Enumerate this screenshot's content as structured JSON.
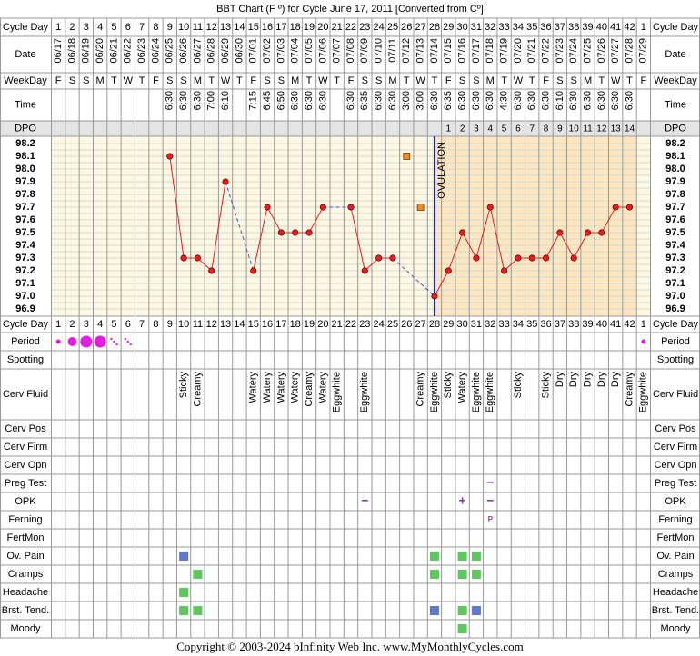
{
  "title": "BBT Chart (F º) for Cycle June 17, 2011  [Converted from Cº]",
  "copyright": "Copyright © 2003-2024 bInfinity Web Inc.     www.MyMonthlyCycles.com",
  "header_rows": {
    "cycle_day": "Cycle Day",
    "date": "Date",
    "weekday": "WeekDay",
    "time": "Time",
    "dpo": "DPO"
  },
  "chart_data": {
    "type": "line",
    "categories": [
      1,
      2,
      3,
      4,
      5,
      6,
      7,
      8,
      9,
      10,
      11,
      12,
      13,
      14,
      15,
      16,
      17,
      18,
      19,
      20,
      21,
      22,
      23,
      24,
      25,
      26,
      27,
      28,
      29,
      30,
      31,
      32,
      33,
      34,
      35,
      36,
      37,
      38,
      39,
      40,
      41,
      42,
      1
    ],
    "dates": [
      "06/17",
      "06/18",
      "06/19",
      "06/20",
      "06/21",
      "06/22",
      "06/23",
      "06/24",
      "06/25",
      "06/26",
      "06/27",
      "06/28",
      "06/29",
      "06/30",
      "07/01",
      "07/02",
      "07/03",
      "07/04",
      "07/05",
      "07/06",
      "07/07",
      "07/08",
      "07/09",
      "07/10",
      "07/11",
      "07/12",
      "07/13",
      "07/14",
      "07/15",
      "07/16",
      "07/17",
      "07/18",
      "07/19",
      "07/20",
      "07/21",
      "07/22",
      "07/23",
      "07/24",
      "07/25",
      "07/26",
      "07/27",
      "07/28",
      "07/29"
    ],
    "weekdays": [
      "F",
      "S",
      "S",
      "M",
      "T",
      "W",
      "T",
      "F",
      "S",
      "S",
      "M",
      "T",
      "W",
      "T",
      "F",
      "S",
      "S",
      "M",
      "T",
      "W",
      "T",
      "F",
      "S",
      "S",
      "M",
      "T",
      "W",
      "T",
      "F",
      "S",
      "S",
      "M",
      "T",
      "W",
      "T",
      "F",
      "S",
      "S",
      "M",
      "T",
      "W",
      "T",
      "F"
    ],
    "times": [
      null,
      null,
      null,
      null,
      null,
      null,
      null,
      null,
      "6:30",
      "6:30",
      "6:30",
      "7:00",
      "6:10",
      null,
      "7:15",
      "6:45",
      "6:50",
      "6:30",
      "6:30",
      "6:30",
      null,
      "6:30",
      "6:35",
      "6:30",
      "6:30",
      "3:00",
      "3:00",
      "6:30",
      "6:35",
      "6:30",
      "6:30",
      "6:30",
      "4:30",
      "6:30",
      "6:30",
      "6:30",
      "6:10",
      "6:30",
      "6:30",
      "6:30",
      "6:30",
      "6:30",
      null
    ],
    "dpo": [
      null,
      null,
      null,
      null,
      null,
      null,
      null,
      null,
      null,
      null,
      null,
      null,
      null,
      null,
      null,
      null,
      null,
      null,
      null,
      null,
      null,
      null,
      null,
      null,
      null,
      null,
      null,
      null,
      1,
      2,
      3,
      4,
      5,
      6,
      7,
      8,
      9,
      10,
      11,
      12,
      13,
      14,
      null
    ],
    "values": [
      null,
      null,
      null,
      null,
      null,
      null,
      null,
      null,
      98.1,
      97.3,
      97.3,
      97.2,
      97.9,
      null,
      97.2,
      97.7,
      97.5,
      97.5,
      97.5,
      97.7,
      null,
      97.7,
      97.2,
      97.3,
      97.3,
      null,
      null,
      97.0,
      97.2,
      97.5,
      97.3,
      97.7,
      97.2,
      97.3,
      97.3,
      97.3,
      97.5,
      97.3,
      97.5,
      97.5,
      97.7,
      97.7,
      null
    ],
    "excluded_values": [
      null,
      null,
      null,
      null,
      null,
      null,
      null,
      null,
      null,
      null,
      null,
      null,
      null,
      null,
      null,
      null,
      null,
      null,
      null,
      null,
      null,
      null,
      null,
      null,
      null,
      98.1,
      97.7,
      null,
      null,
      null,
      null,
      null,
      null,
      null,
      null,
      null,
      null,
      null,
      null,
      null,
      null,
      null,
      null
    ],
    "color": "#e02020",
    "connector_color": "#4455dd",
    "excluded_color": "#f08a24",
    "ylim": [
      96.9,
      98.2
    ],
    "yticks": [
      98.2,
      98.1,
      {
        "value": 98,
        "label": "98.0"
      },
      97.9,
      97.8,
      97.7,
      97.6,
      97.5,
      97.4,
      97.3,
      97.2,
      97.1,
      {
        "value": 97,
        "label": "97.0"
      },
      96.9
    ],
    "ovulation_label": "OVULATION",
    "ovulation_date": "07/14",
    "ovulation_color": "#1020c0",
    "pre_color": "#fdf8e4",
    "post_color": "#fde7c3",
    "grid": true
  },
  "rows": [
    {
      "label": "Period",
      "color": "#e020e0",
      "values": [
        "light",
        "medium",
        "heavy",
        "heavy",
        "spotting",
        "spotting",
        null,
        null,
        null,
        null,
        null,
        null,
        null,
        null,
        null,
        null,
        null,
        null,
        null,
        null,
        null,
        null,
        null,
        null,
        null,
        null,
        null,
        null,
        null,
        null,
        null,
        null,
        null,
        null,
        null,
        null,
        null,
        null,
        null,
        null,
        null,
        null,
        "light"
      ]
    },
    {
      "label": "Spotting"
    },
    {
      "label": "Cerv Fluid",
      "values": [
        null,
        null,
        null,
        null,
        null,
        null,
        null,
        null,
        null,
        "Sticky",
        "Creamy",
        null,
        null,
        null,
        "Watery",
        "Watery",
        "Watery",
        "Watery",
        "Creamy",
        "Watery",
        "Eggwhite",
        null,
        "Eggwhite",
        null,
        null,
        null,
        "Creamy",
        "Eggwhite",
        "Sticky",
        "Watery",
        "Eggwhite",
        "Eggwhite",
        null,
        "Sticky",
        null,
        "Sticky",
        "Dry",
        "Dry",
        "Dry",
        "Dry",
        "Dry",
        "Creamy",
        "Eggwhite"
      ]
    },
    {
      "label": "Cerv Pos"
    },
    {
      "label": "Cerv Firm"
    },
    {
      "label": "Cerv Opn"
    },
    {
      "label": "Preg Test",
      "color": "#7a3aa0",
      "values": [
        null,
        null,
        null,
        null,
        null,
        null,
        null,
        null,
        null,
        null,
        null,
        null,
        null,
        null,
        null,
        null,
        null,
        null,
        null,
        null,
        null,
        null,
        null,
        null,
        null,
        null,
        null,
        null,
        null,
        null,
        null,
        "−",
        null,
        null,
        null,
        null,
        null,
        null,
        null,
        null,
        null,
        null,
        null
      ]
    },
    {
      "label": "OPK",
      "color": "#7a3aa0",
      "values": [
        null,
        null,
        null,
        null,
        null,
        null,
        null,
        null,
        null,
        null,
        null,
        null,
        null,
        null,
        null,
        null,
        null,
        null,
        null,
        null,
        null,
        null,
        "−",
        null,
        null,
        null,
        null,
        null,
        null,
        "+",
        null,
        "−",
        null,
        null,
        null,
        null,
        null,
        null,
        null,
        null,
        null,
        null,
        null
      ]
    },
    {
      "label": "Ferning",
      "color": "#a03aa0",
      "values": [
        null,
        null,
        null,
        null,
        null,
        null,
        null,
        null,
        null,
        null,
        null,
        null,
        null,
        null,
        null,
        null,
        null,
        null,
        null,
        null,
        null,
        null,
        null,
        null,
        null,
        null,
        null,
        null,
        null,
        null,
        null,
        "P",
        null,
        null,
        null,
        null,
        null,
        null,
        null,
        null,
        null,
        null,
        null
      ]
    },
    {
      "label": "FertMon"
    },
    {
      "label": "Ov. Pain",
      "values": [
        null,
        null,
        null,
        null,
        null,
        null,
        null,
        null,
        null,
        "#5f78d6",
        null,
        null,
        null,
        null,
        null,
        null,
        null,
        null,
        null,
        null,
        null,
        null,
        null,
        null,
        null,
        null,
        null,
        "#5ec85e",
        null,
        "#5ec85e",
        "#5ec85e",
        null,
        null,
        null,
        null,
        null,
        null,
        null,
        null,
        null,
        null,
        null,
        null
      ]
    },
    {
      "label": "Cramps",
      "values": [
        null,
        null,
        null,
        null,
        null,
        null,
        null,
        null,
        null,
        null,
        "#5ec85e",
        null,
        null,
        null,
        null,
        null,
        null,
        null,
        null,
        null,
        null,
        null,
        null,
        null,
        null,
        null,
        null,
        "#5ec85e",
        null,
        "#5ec85e",
        "#5ec85e",
        null,
        null,
        null,
        null,
        null,
        null,
        null,
        null,
        null,
        null,
        null,
        null
      ]
    },
    {
      "label": "Headache",
      "values": [
        null,
        null,
        null,
        null,
        null,
        null,
        null,
        null,
        null,
        "#5ec85e",
        null,
        null,
        null,
        null,
        null,
        null,
        null,
        null,
        null,
        null,
        null,
        null,
        null,
        null,
        null,
        null,
        null,
        null,
        null,
        null,
        null,
        null,
        null,
        null,
        null,
        null,
        null,
        null,
        null,
        null,
        null,
        null,
        null
      ]
    },
    {
      "label": "Brst. Tend.",
      "values": [
        null,
        null,
        null,
        null,
        null,
        null,
        null,
        null,
        null,
        "#5ec85e",
        "#5ec85e",
        null,
        null,
        null,
        null,
        null,
        null,
        null,
        null,
        null,
        null,
        null,
        null,
        null,
        null,
        null,
        null,
        "#5f78d6",
        null,
        "#5ec85e",
        "#5f78d6",
        null,
        null,
        null,
        null,
        null,
        null,
        null,
        null,
        null,
        null,
        null,
        null
      ]
    },
    {
      "label": "Moody",
      "values": [
        null,
        null,
        null,
        null,
        null,
        null,
        null,
        null,
        null,
        null,
        null,
        null,
        null,
        null,
        null,
        null,
        null,
        null,
        null,
        null,
        null,
        null,
        null,
        null,
        null,
        null,
        null,
        null,
        null,
        "#5ec85e",
        null,
        null,
        null,
        null,
        null,
        null,
        null,
        null,
        null,
        null,
        null,
        null,
        null
      ]
    }
  ]
}
